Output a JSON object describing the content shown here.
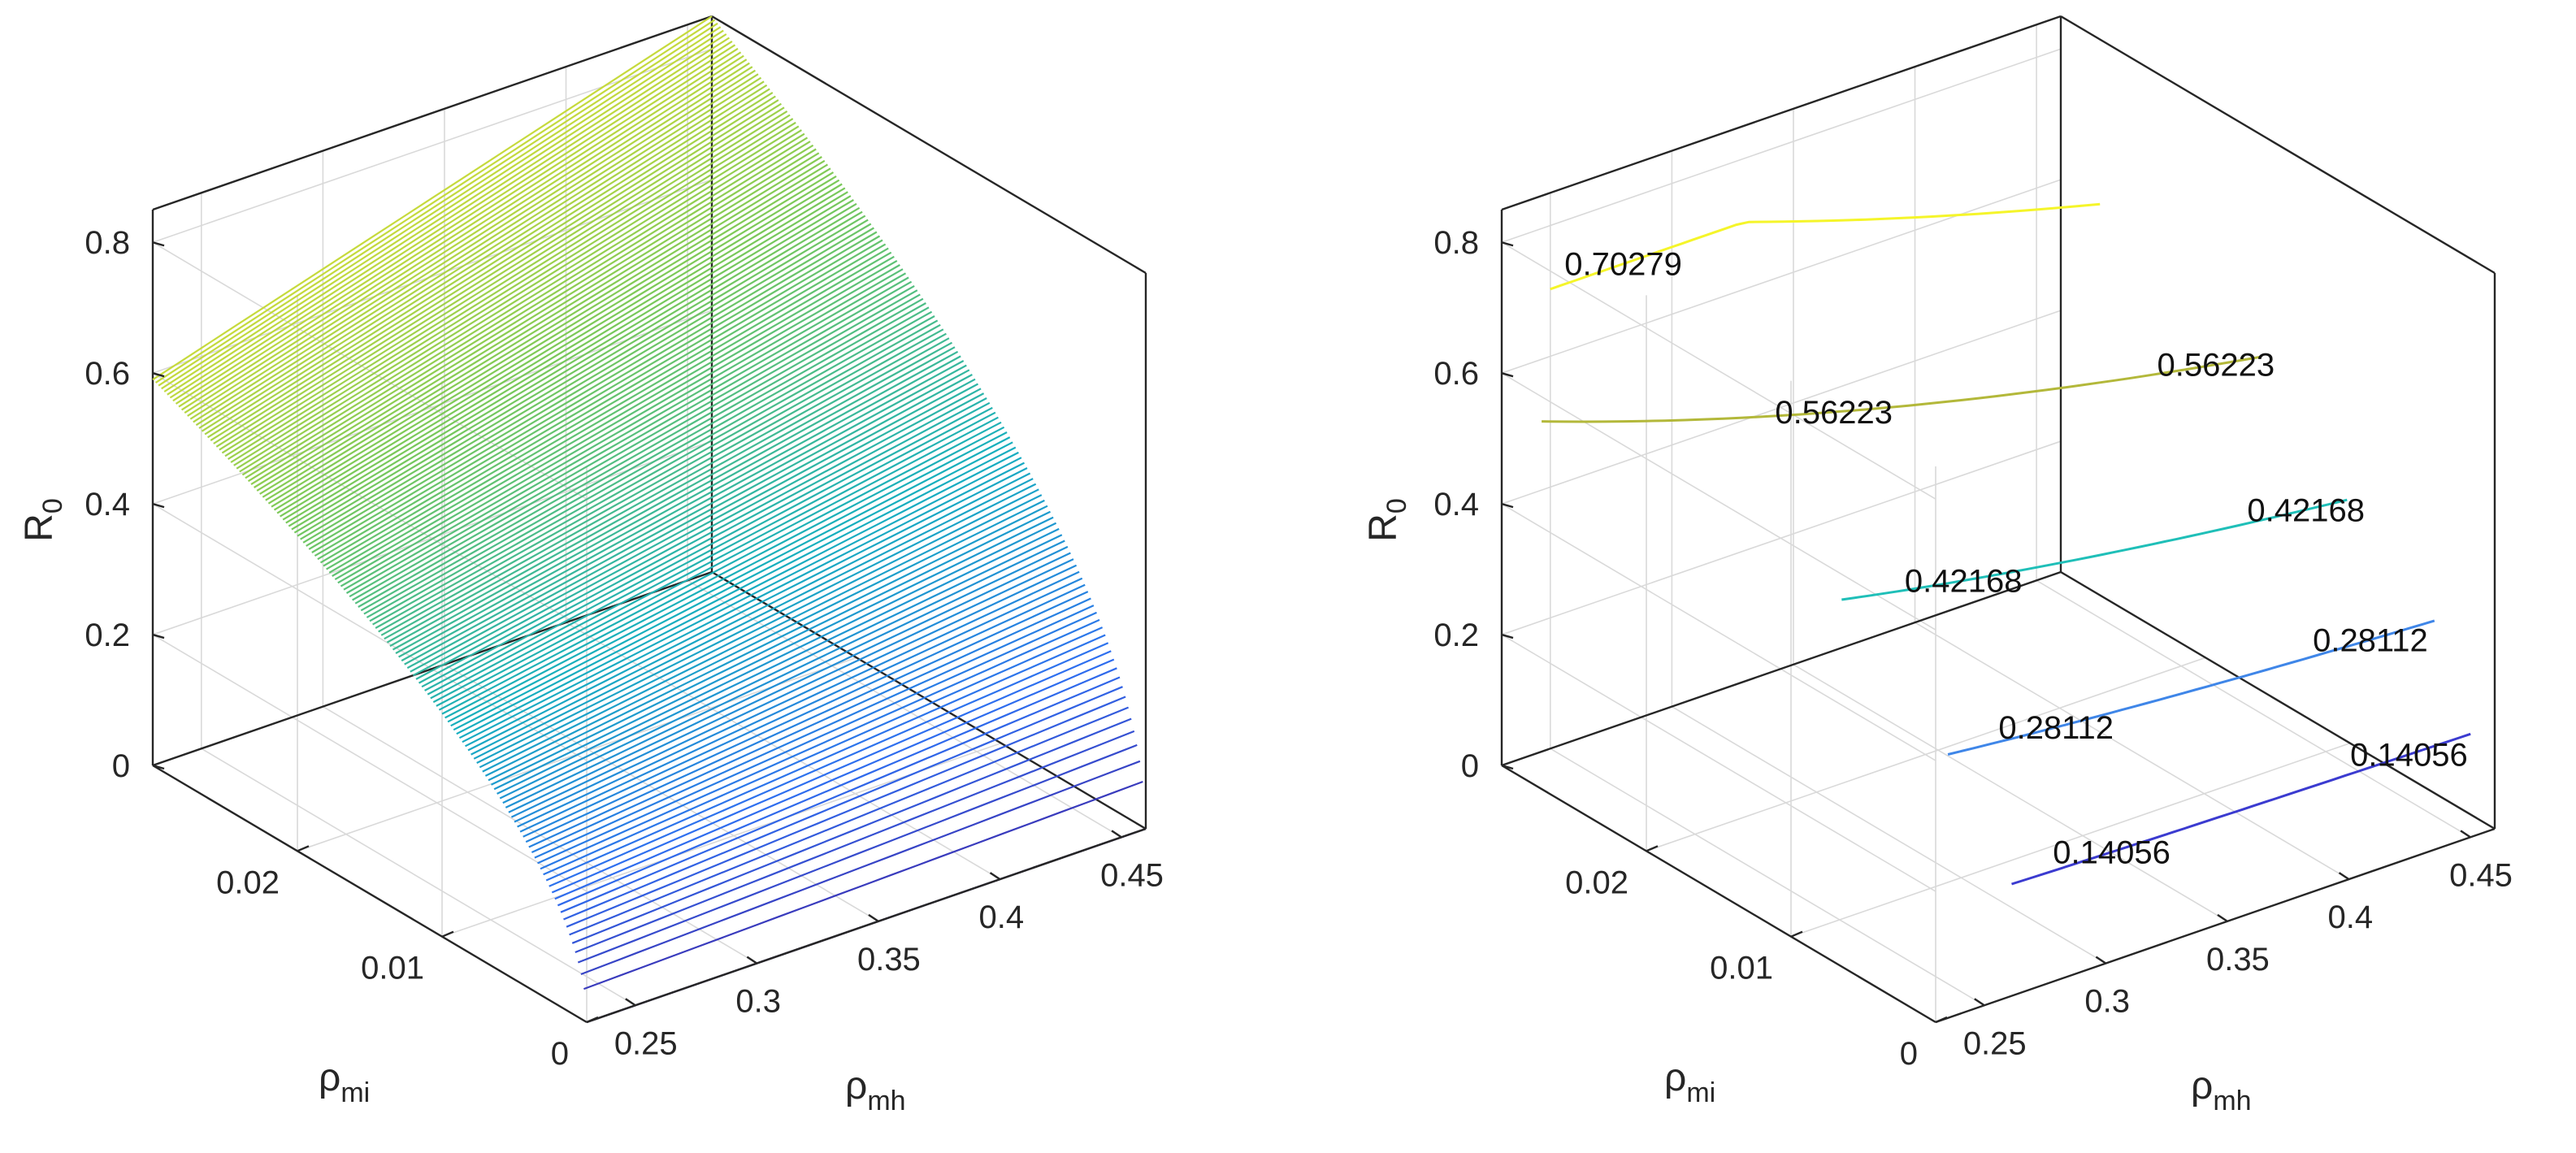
{
  "colors": {
    "axis": "#262626",
    "grid": "#dcdcdc",
    "colormap": [
      "#440154",
      "#3b528b",
      "#21908d",
      "#5dc963",
      "#fde725"
    ]
  },
  "chart_data": [
    {
      "type": "surface",
      "colormap": "parula",
      "mesh_lines": "constant rho_mi",
      "ylabel_text": "R",
      "ylabel_sub": "0",
      "xlabel_text": "ρ",
      "xlabel_sub": "mh",
      "mlabel_text": "ρ",
      "mlabel_sub": "mi",
      "x_range": [
        0.23,
        0.46
      ],
      "m_range": [
        0,
        0.03
      ],
      "z_range": [
        0,
        0.85
      ],
      "x_ticks": [
        "0.25",
        "0.3",
        "0.35",
        "0.4",
        "0.45"
      ],
      "m_ticks": [
        "0",
        "0.01",
        "0.02"
      ],
      "z_ticks": [
        "0",
        "0.2",
        "0.4",
        "0.6",
        "0.8"
      ],
      "grid": true,
      "surface_corners": {
        "rho_mh_min_rho_mi_min": 0.0,
        "rho_mh_max_rho_mi_min": 0.0,
        "rho_mh_min_rho_mi_max": 0.59,
        "rho_mh_max_rho_mi_max": 0.85
      }
    },
    {
      "type": "contour3",
      "ylabel_text": "R",
      "ylabel_sub": "0",
      "xlabel_text": "ρ",
      "xlabel_sub": "mh",
      "mlabel_text": "ρ",
      "mlabel_sub": "mi",
      "x_ticks": [
        "0.25",
        "0.3",
        "0.35",
        "0.4",
        "0.45"
      ],
      "m_ticks": [
        "0",
        "0.01",
        "0.02"
      ],
      "z_ticks": [
        "0",
        "0.2",
        "0.4",
        "0.6",
        "0.8"
      ],
      "grid": true,
      "levels": [
        {
          "value": 0.14056,
          "color": "#3b3bd0",
          "labels": [
            "0.14056",
            "0.14056"
          ]
        },
        {
          "value": 0.28112,
          "color": "#3f86e8",
          "labels": [
            "0.28112",
            "0.28112"
          ]
        },
        {
          "value": 0.42168,
          "color": "#1fbfb8",
          "labels": [
            "0.42168",
            "0.42168"
          ]
        },
        {
          "value": 0.56223,
          "color": "#b3b83a",
          "labels": [
            "0.56223",
            "0.56223"
          ]
        },
        {
          "value": 0.70279,
          "color": "#f5f52a",
          "labels": [
            "0.70279"
          ]
        }
      ]
    }
  ]
}
